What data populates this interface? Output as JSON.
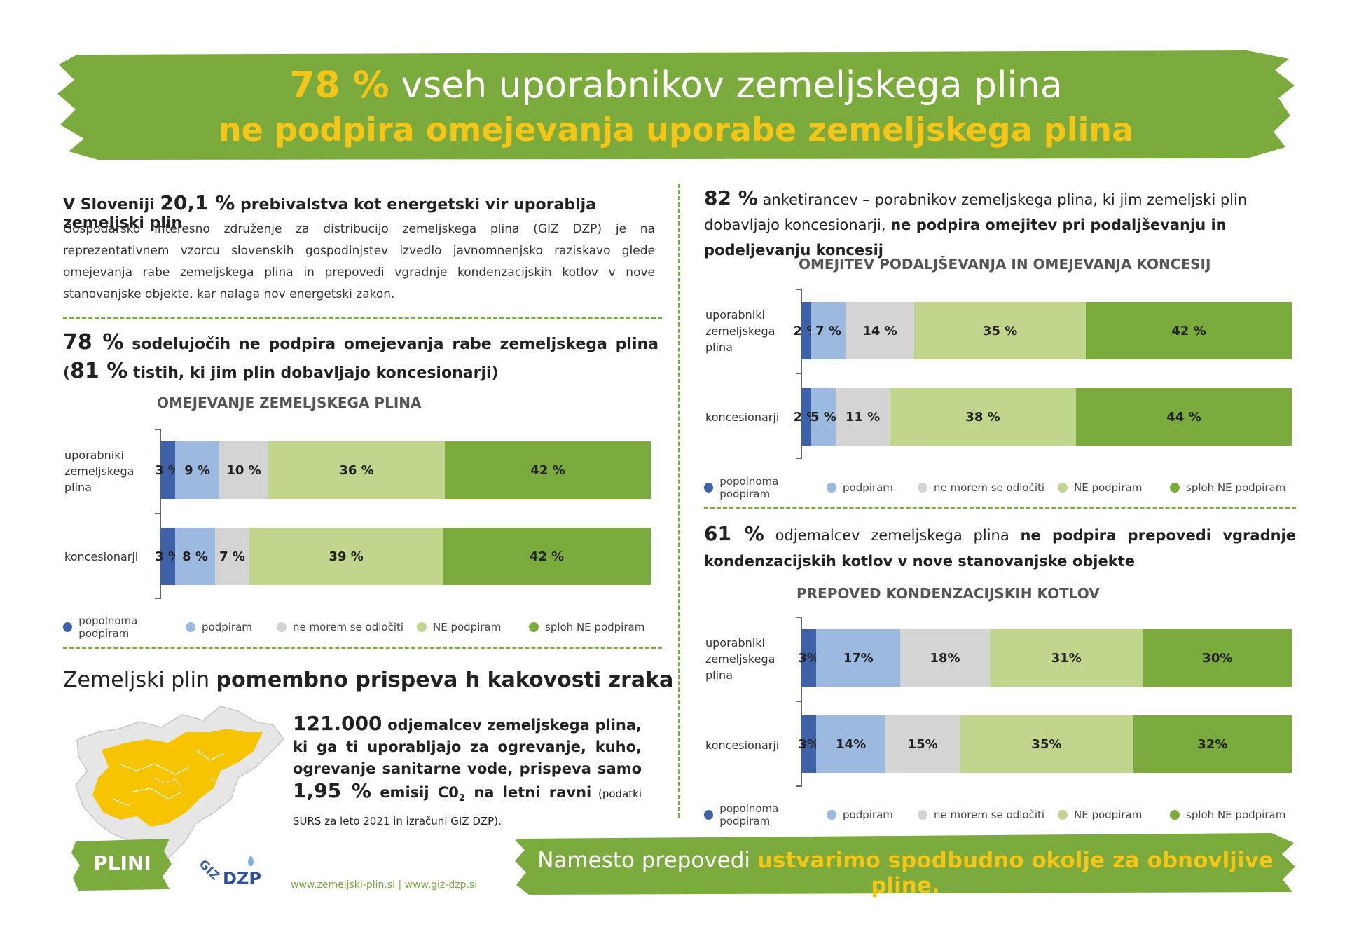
{
  "header": {
    "line1_highlight": "78 %",
    "line1_rest": " vseh uporabnikov zemeljskega plina",
    "line2": "ne podpira omejevanja uporabe zemeljskega plina"
  },
  "intro": {
    "h_pre": "V Sloveniji ",
    "h_num": "20,1 %",
    "h_post": " prebivalstva kot energetski vir uporablja zemeljski plin",
    "body": "Gospodarsko interesno združenje za distribucijo zemeljskega plina (GIZ DZP) je na reprezentativnem vzorcu slovenskih gospodinjstev izvedlo javnomnenjsko raziskavo glede omejevanja rabe zemeljskega plina in prepovedi vgradnje kondenzacijskih kotlov v nove stanovanjske objekte, kar nalaga nov energetski zakon."
  },
  "section1": {
    "num": "78 %",
    "text1": " sodelujočih ne podpira omejevanja rabe zemeljskega plina (",
    "num2": "81 %",
    "text2": " tistih, ki jim plin dobavljajo koncesionarji)"
  },
  "section2": {
    "num": "82 %",
    "text1": " anketirancev – porabnikov zemeljskega plina, ki jim zemeljski plin dobavljajo koncesionarji, ",
    "bold": "ne podpira omejitev pri podaljševanju in podeljevanju koncesij"
  },
  "section3": {
    "num": "61 %",
    "text1": " odjemalcev zemeljskega plina ",
    "bold": "ne podpira prepovedi vgradnje kondenzacijskih kotlov v nove stanovanjske objekte"
  },
  "air": {
    "title_pre": "Zemeljski plin ",
    "title_bold": "pomembno prispeva h kakovosti zraka",
    "num": "121.000",
    "t1": " odjemalcev zemeljskega plina, ki ga ti uporabljajo za ogrevanje, kuho, ogrevanje sanitarne vode, prispeva samo ",
    "num2": "1,95 %",
    "t2a": " emisij C0",
    "t2sub": "2",
    "t2b": " na letni ravni",
    "small": " (podatki SURS za leto 2021 in izračuni GIZ DZP)."
  },
  "logos": {
    "plini": "PLINI",
    "giz": "GIZ",
    "dzp": "DZP",
    "website": "www.zemeljski-plin.si | www.giz-dzp.si"
  },
  "footer": {
    "pre": "Namesto prepovedi ",
    "bold": "ustvarimo spodbudno okolje za obnovljive pline."
  },
  "colors": {
    "green": "#7aab3c",
    "yellow": "#f5c518",
    "s1": "#3d62a8",
    "s2": "#9cb9e0",
    "s3": "#d4d4d4",
    "s4": "#bfd68c",
    "s5": "#7aab3c"
  },
  "legend_labels": [
    "popolnoma podpiram",
    "podpiram",
    "ne morem se odločiti",
    "NE podpiram",
    "sploh NE podpiram"
  ],
  "chart_data": [
    {
      "type": "bar",
      "orientation": "horizontal-stacked-100",
      "title": "OMEJEVANJE ZEMELJSKEGA PLINA",
      "categories": [
        "uporabniki zemeljskega plina",
        "koncesionarji"
      ],
      "series": [
        {
          "name": "popolnoma podpiram",
          "values": [
            3,
            3
          ],
          "labels": [
            "3 %",
            "3 %"
          ]
        },
        {
          "name": "podpiram",
          "values": [
            9,
            8
          ],
          "labels": [
            "9 %",
            "8 %"
          ]
        },
        {
          "name": "ne morem se odločiti",
          "values": [
            10,
            7
          ],
          "labels": [
            "10 %",
            "7 %"
          ]
        },
        {
          "name": "NE podpiram",
          "values": [
            36,
            39
          ],
          "labels": [
            "36 %",
            "39 %"
          ]
        },
        {
          "name": "sploh NE podpiram",
          "values": [
            42,
            42
          ],
          "labels": [
            "42 %",
            "42 %"
          ]
        }
      ]
    },
    {
      "type": "bar",
      "orientation": "horizontal-stacked-100",
      "title": "OMEJITEV PODALJŠEVANJA IN OMEJEVANJA KONCESIJ",
      "categories": [
        "uporabniki zemeljskega plina",
        "koncesionarji"
      ],
      "series": [
        {
          "name": "popolnoma podpiram",
          "values": [
            2,
            2
          ],
          "labels": [
            "2 %",
            "2 %"
          ]
        },
        {
          "name": "podpiram",
          "values": [
            7,
            5
          ],
          "labels": [
            "7 %",
            "5 %"
          ]
        },
        {
          "name": "ne morem se odločiti",
          "values": [
            14,
            11
          ],
          "labels": [
            "14 %",
            "11 %"
          ]
        },
        {
          "name": "NE podpiram",
          "values": [
            35,
            38
          ],
          "labels": [
            "35 %",
            "38 %"
          ]
        },
        {
          "name": "sploh NE podpiram",
          "values": [
            42,
            44
          ],
          "labels": [
            "42 %",
            "44 %"
          ]
        }
      ]
    },
    {
      "type": "bar",
      "orientation": "horizontal-stacked-100",
      "title": "PREPOVED KONDENZACIJSKIH KOTLOV",
      "categories": [
        "uporabniki zemeljskega plina",
        "koncesionarji"
      ],
      "series": [
        {
          "name": "popolnoma podpiram",
          "values": [
            3,
            3
          ],
          "labels": [
            "3%",
            "3%"
          ]
        },
        {
          "name": "podpiram",
          "values": [
            17,
            14
          ],
          "labels": [
            "17%",
            "14%"
          ]
        },
        {
          "name": "ne morem se odločiti",
          "values": [
            18,
            15
          ],
          "labels": [
            "18%",
            "15%"
          ]
        },
        {
          "name": "NE podpiram",
          "values": [
            31,
            35
          ],
          "labels": [
            "31%",
            "35%"
          ]
        },
        {
          "name": "sploh NE podpiram",
          "values": [
            30,
            32
          ],
          "labels": [
            "30%",
            "32%"
          ]
        }
      ]
    }
  ]
}
